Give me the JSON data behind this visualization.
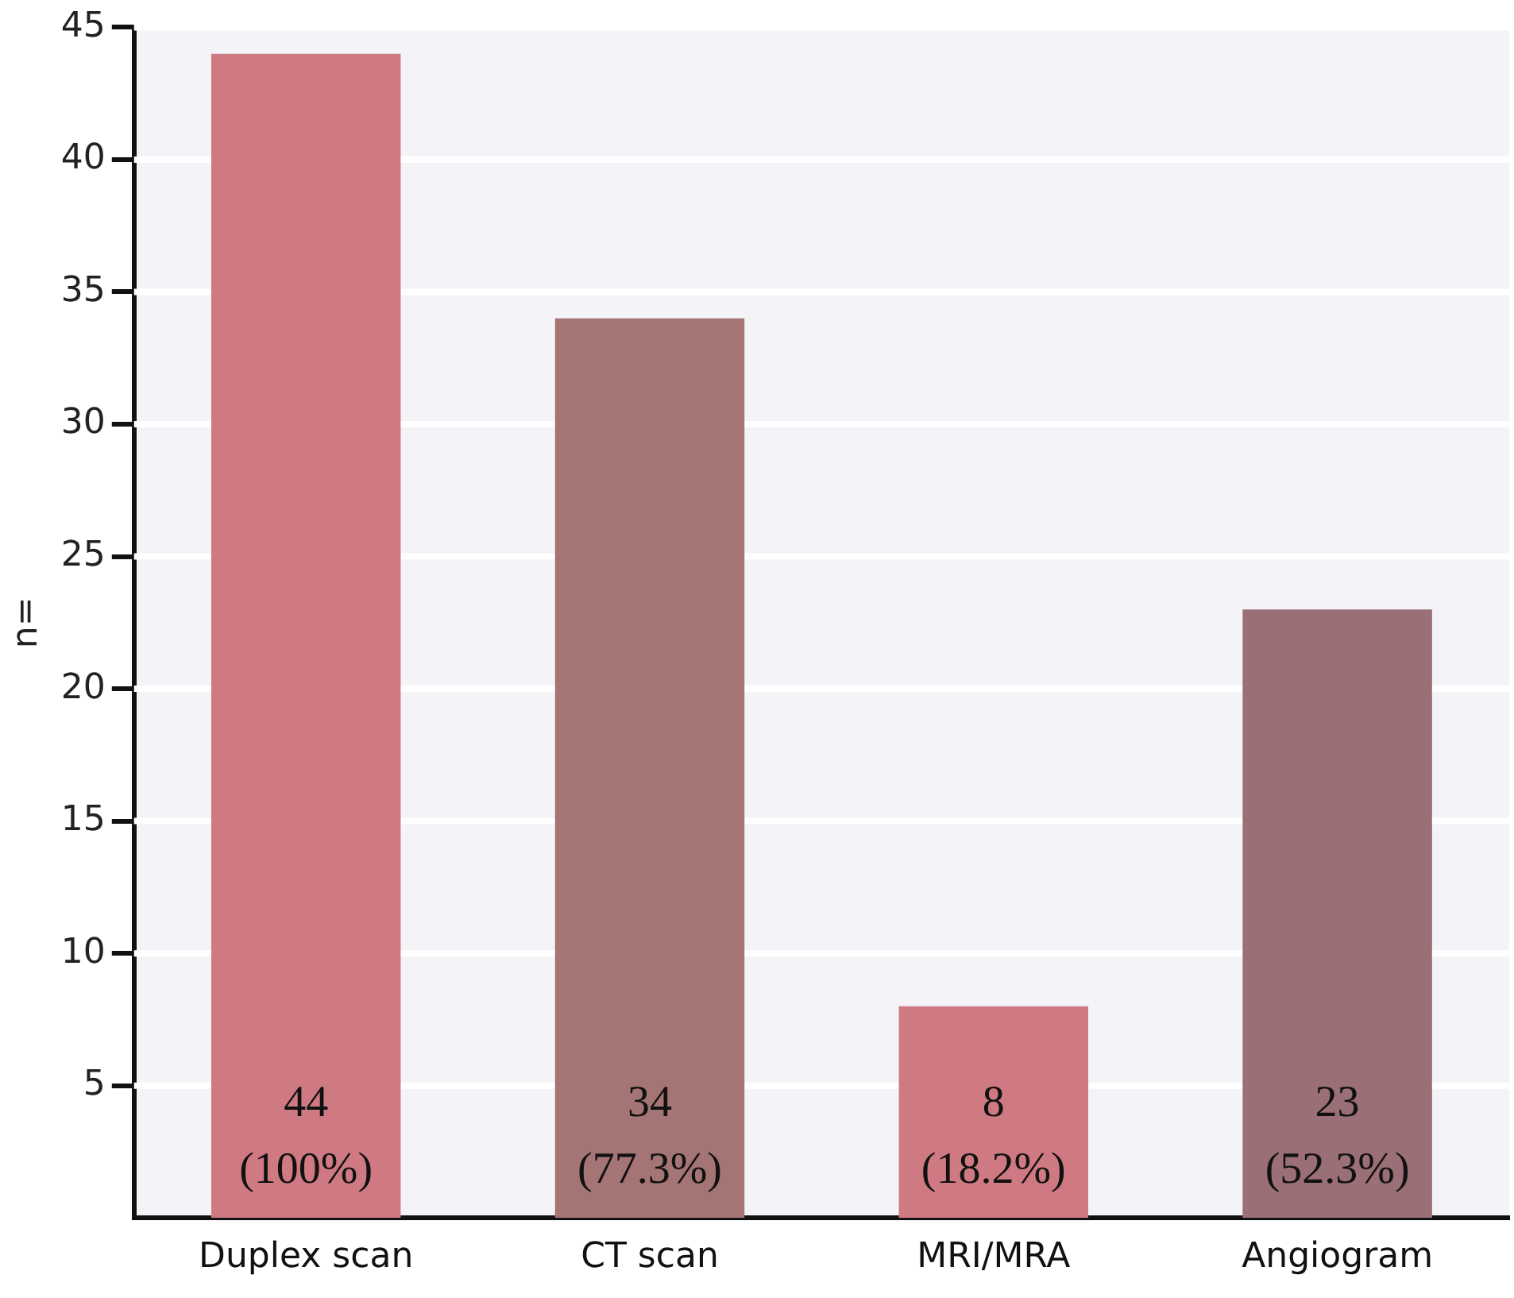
{
  "chart_data": {
    "type": "bar",
    "ylabel": "n=",
    "categories": [
      "Duplex scan",
      "CT scan",
      "MRI/MRA",
      "Angiogram"
    ],
    "values": [
      44,
      34,
      8,
      23
    ],
    "colors": [
      "#cf7a82",
      "#a47574",
      "#cf7a82",
      "#9a6f76"
    ],
    "value_labels": [
      "44\n(100%)",
      "34\n(77.3%)",
      "8\n(18.2%)",
      "23\n(52.3%)"
    ],
    "ylim": [
      0,
      45
    ],
    "yticks": [
      5,
      10,
      15,
      20,
      25,
      30,
      35,
      40,
      45
    ],
    "grid": "y"
  }
}
